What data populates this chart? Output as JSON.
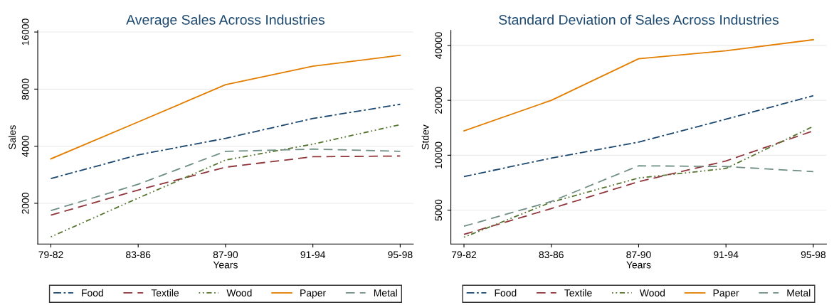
{
  "chart_data": [
    {
      "type": "line",
      "title": "Average Sales Across Industries",
      "xlabel": "Years",
      "ylabel": "Sales",
      "categories": [
        "79-82",
        "83-86",
        "87-90",
        "91-94",
        "95-98"
      ],
      "series": [
        {
          "name": "Food",
          "color": "#1a476f",
          "line_style": "dashdot",
          "values": [
            2700,
            3600,
            4400,
            5600,
            6650
          ]
        },
        {
          "name": "Textile",
          "color": "#90353b",
          "line_style": "dashed",
          "values": [
            1730,
            2350,
            3100,
            3520,
            3550
          ]
        },
        {
          "name": "Wood",
          "color": "#55752f",
          "line_style": "dotted",
          "values": [
            1330,
            2130,
            3380,
            4100,
            5200
          ]
        },
        {
          "name": "Paper",
          "color": "#e37e00",
          "line_style": "solid",
          "values": [
            3430,
            5370,
            8440,
            10560,
            12070
          ]
        },
        {
          "name": "Metal",
          "color": "#6e8e84",
          "line_style": "dashed",
          "values": [
            1830,
            2520,
            3760,
            3860,
            3760
          ]
        }
      ],
      "log": "y",
      "ylim": [
        1220,
        16300
      ],
      "yticks": [
        2000,
        4000,
        8000,
        16000
      ],
      "grid": "y",
      "legend": "bottom"
    },
    {
      "type": "line",
      "title": "Standard Deviation of Sales Across Industries",
      "xlabel": "Years",
      "ylabel": "Stdev",
      "categories": [
        "79-82",
        "83-86",
        "87-90",
        "91-94",
        "95-98"
      ],
      "series": [
        {
          "name": "Food",
          "color": "#1a476f",
          "line_style": "dashdot",
          "values": [
            7640,
            9640,
            11800,
            15760,
            21200
          ]
        },
        {
          "name": "Textile",
          "color": "#90353b",
          "line_style": "dashed",
          "values": [
            3680,
            5100,
            7160,
            9300,
            13600
          ]
        },
        {
          "name": "Wood",
          "color": "#55752f",
          "line_style": "dotted",
          "values": [
            3550,
            5530,
            7500,
            8460,
            14400
          ]
        },
        {
          "name": "Paper",
          "color": "#e37e00",
          "line_style": "solid",
          "values": [
            13590,
            20000,
            33800,
            37400,
            43000
          ]
        },
        {
          "name": "Metal",
          "color": "#6e8e84",
          "line_style": "dashed",
          "values": [
            4080,
            5580,
            8750,
            8670,
            8130
          ]
        }
      ],
      "log": "y",
      "ylim": [
        3260,
        48300
      ],
      "yticks": [
        5000,
        10000,
        20000,
        40000
      ],
      "grid": "y",
      "legend": "bottom"
    }
  ]
}
